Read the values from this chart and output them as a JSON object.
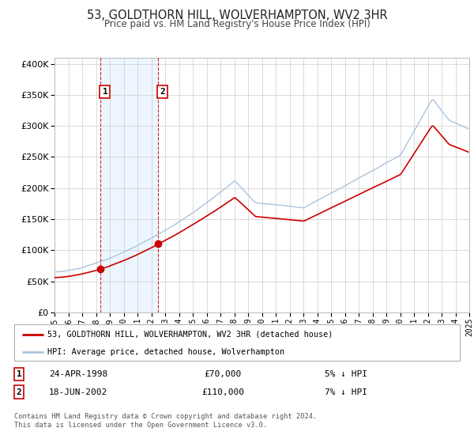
{
  "title": "53, GOLDTHORN HILL, WOLVERHAMPTON, WV2 3HR",
  "subtitle": "Price paid vs. HM Land Registry's House Price Index (HPI)",
  "legend_entry1": "53, GOLDTHORN HILL, WOLVERHAMPTON, WV2 3HR (detached house)",
  "legend_entry2": "HPI: Average price, detached house, Wolverhampton",
  "transaction1_date": "24-APR-1998",
  "transaction1_price": "£70,000",
  "transaction1_hpi": "5% ↓ HPI",
  "transaction1_year": 1998.31,
  "transaction1_value": 70000,
  "transaction2_date": "18-JUN-2002",
  "transaction2_price": "£110,000",
  "transaction2_hpi": "7% ↓ HPI",
  "transaction2_year": 2002.46,
  "transaction2_value": 110000,
  "footnote1": "Contains HM Land Registry data © Crown copyright and database right 2024.",
  "footnote2": "This data is licensed under the Open Government Licence v3.0.",
  "ylim_max": 400000,
  "xlim_start": 1995,
  "xlim_end": 2025,
  "background_color": "#ffffff",
  "plot_bg_color": "#ffffff",
  "grid_color": "#cccccc",
  "hpi_line_color": "#aac4dd",
  "price_line_color": "#cc0000",
  "shade_color": "#ddeeff",
  "shade_alpha": 0.5,
  "title_color": "#222222",
  "subtitle_color": "#444444",
  "box_edge_color": "#cc0000"
}
